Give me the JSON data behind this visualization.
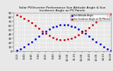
{
  "title": "Solar PV/Inverter Performance Sun Altitude Angle & Sun Incidence Angle on PV Panels",
  "ylim": [
    0,
    90
  ],
  "xlim": [
    0,
    13.5
  ],
  "blue_x": [
    0.5,
    1.0,
    1.5,
    2.0,
    2.5,
    3.0,
    3.5,
    4.0,
    4.5,
    5.0,
    5.5,
    6.0,
    6.5,
    7.0,
    7.5,
    8.0,
    8.5,
    9.0,
    9.5,
    10.0,
    10.5,
    11.0,
    11.5,
    12.0,
    12.5,
    13.0,
    13.5
  ],
  "blue_y": [
    2,
    5,
    10,
    16,
    22,
    28,
    35,
    41,
    47,
    52,
    56,
    59,
    61,
    62,
    61,
    59,
    56,
    52,
    47,
    41,
    35,
    28,
    22,
    16,
    10,
    5,
    2
  ],
  "red_x": [
    0.5,
    1.0,
    1.5,
    2.0,
    2.5,
    3.0,
    3.5,
    4.0,
    4.5,
    5.0,
    5.5,
    6.0,
    6.5,
    7.0,
    7.5,
    8.0,
    8.5,
    9.0,
    9.5,
    10.0,
    10.5,
    11.0,
    11.5,
    12.0,
    12.5,
    13.0,
    13.5
  ],
  "red_y": [
    85,
    82,
    77,
    72,
    66,
    60,
    53,
    47,
    41,
    36,
    32,
    29,
    27,
    27,
    28,
    30,
    34,
    38,
    43,
    49,
    55,
    62,
    68,
    74,
    79,
    83,
    86
  ],
  "xtick_labels": [
    "5:15",
    "6:00",
    "6:45",
    "7:30",
    "8:15",
    "9:00",
    "9:45",
    "10:30",
    "11:15",
    "12:00",
    "12:45",
    "13:30",
    "14:15",
    "15:00"
  ],
  "ytick_values": [
    0,
    10,
    20,
    30,
    40,
    50,
    60,
    70,
    80,
    90
  ],
  "background_color": "#e8e8e8",
  "grid_color": "#ffffff",
  "blue_color": "#0000cc",
  "red_color": "#cc0000",
  "title_fontsize": 3.2,
  "tick_fontsize": 2.8,
  "marker_size": 0.9,
  "legend_fontsize": 2.2
}
